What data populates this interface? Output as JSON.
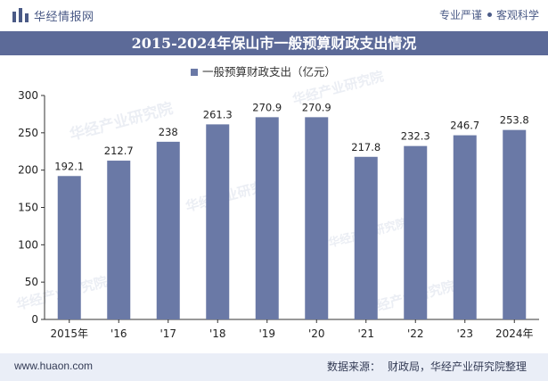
{
  "header": {
    "brand": "华经情报网",
    "tagline_left": "专业严谨",
    "tagline_right": "客观科学",
    "logo_icon": "bar-chart-logo-icon"
  },
  "title": "2015-2024年保山市一般预算财政支出情况",
  "footer": {
    "site": "www.huaon.com",
    "source_label": "数据来源：",
    "source_text": "财政局，华经产业研究院整理"
  },
  "watermarks": [
    "华经产业研究院",
    "www.huaon.com"
  ],
  "colors": {
    "bar": "#6a79a6",
    "title_bg": "#5c6a98",
    "footer_bg": "#eaeef7",
    "text": "#333b55"
  },
  "chart_data": {
    "type": "bar",
    "categories": [
      "2015年",
      "'16",
      "'17",
      "'18",
      "'19",
      "'20",
      "'21",
      "'22",
      "'23",
      "2024年"
    ],
    "series": [
      {
        "name": "一般预算财政支出（亿元）",
        "values": [
          192.1,
          212.7,
          238,
          261.3,
          270.9,
          270.9,
          217.8,
          232.3,
          246.7,
          253.8
        ]
      }
    ],
    "ylim": [
      0,
      300
    ],
    "yticks": [
      0,
      50,
      100,
      150,
      200,
      250,
      300
    ],
    "legend_position": "top",
    "grid": false
  }
}
